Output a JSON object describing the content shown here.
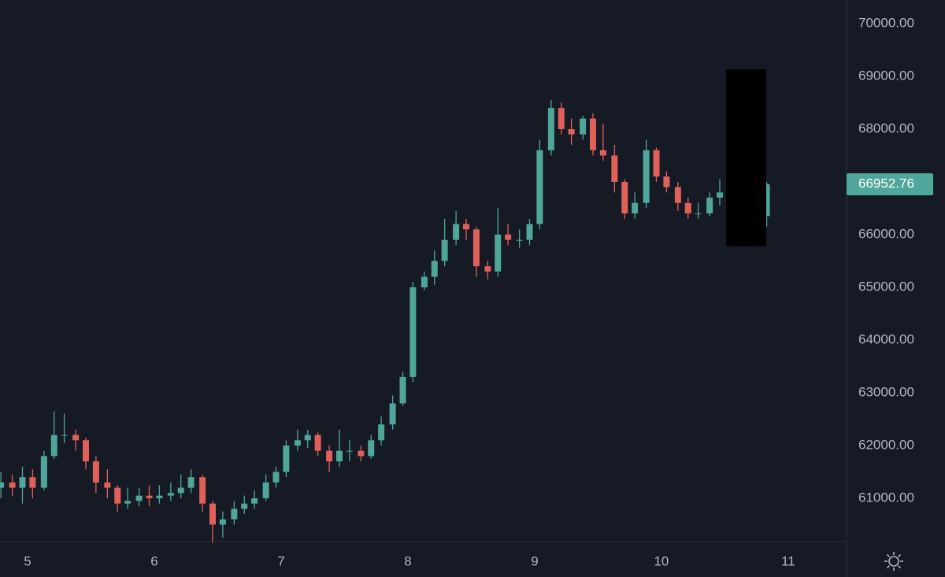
{
  "chart_data": {
    "type": "candlestick",
    "x": [
      4.79,
      4.88,
      4.96,
      5.04,
      5.13,
      5.21,
      5.29,
      5.38,
      5.46,
      5.54,
      5.63,
      5.71,
      5.79,
      5.88,
      5.96,
      6.04,
      6.13,
      6.21,
      6.29,
      6.38,
      6.46,
      6.54,
      6.63,
      6.71,
      6.79,
      6.88,
      6.96,
      7.04,
      7.13,
      7.21,
      7.29,
      7.38,
      7.46,
      7.54,
      7.63,
      7.71,
      7.79,
      7.88,
      7.96,
      8.04,
      8.13,
      8.21,
      8.29,
      8.38,
      8.46,
      8.54,
      8.63,
      8.71,
      8.79,
      8.88,
      8.96,
      9.04,
      9.13,
      9.21,
      9.29,
      9.38,
      9.46,
      9.54,
      9.63,
      9.71,
      9.79,
      9.88,
      9.96,
      10.04,
      10.13,
      10.21,
      10.29,
      10.38,
      10.46,
      10.83
    ],
    "open": [
      61200,
      61300,
      61200,
      61400,
      61200,
      61800,
      62200,
      62200,
      62100,
      61700,
      61300,
      61200,
      60900,
      60950,
      61050,
      61000,
      61050,
      61100,
      61200,
      61400,
      60900,
      60500,
      60600,
      60800,
      60900,
      61000,
      61300,
      61500,
      62000,
      62100,
      62200,
      61900,
      61700,
      61900,
      61900,
      61800,
      62100,
      62400,
      62800,
      63300,
      65000,
      65200,
      65500,
      65900,
      66200,
      66100,
      65400,
      65300,
      66000,
      65900,
      65900,
      66200,
      67600,
      68400,
      68000,
      67900,
      68200,
      67600,
      67500,
      67000,
      66400,
      66600,
      67600,
      67100,
      66900,
      66600,
      66400,
      66400,
      66700,
      66350
    ],
    "high": [
      61500,
      61450,
      61600,
      61550,
      61900,
      62650,
      62600,
      62300,
      62150,
      61800,
      61550,
      61250,
      61200,
      61200,
      61250,
      61250,
      61300,
      61450,
      61550,
      61450,
      60950,
      60750,
      60950,
      61050,
      61150,
      61450,
      61600,
      62100,
      62300,
      62300,
      62250,
      62000,
      62300,
      62100,
      62000,
      62200,
      62550,
      62950,
      63400,
      65100,
      65300,
      65700,
      66300,
      66450,
      66300,
      66150,
      65500,
      66500,
      66200,
      66100,
      66300,
      67800,
      68550,
      68500,
      68200,
      68250,
      68300,
      68100,
      67700,
      67050,
      66800,
      67800,
      67650,
      67200,
      67000,
      66700,
      66600,
      66800,
      67050,
      67000
    ],
    "low": [
      61000,
      61050,
      60900,
      61000,
      61150,
      61750,
      62050,
      61900,
      61550,
      61100,
      61000,
      60750,
      60800,
      60850,
      60850,
      60900,
      60950,
      61000,
      61100,
      60750,
      60150,
      60250,
      60500,
      60700,
      60800,
      60950,
      61200,
      61400,
      61900,
      61950,
      61800,
      61500,
      61600,
      61700,
      61700,
      61750,
      62000,
      62300,
      62750,
      63200,
      64950,
      65050,
      65400,
      65800,
      65900,
      65200,
      65150,
      65200,
      65800,
      65750,
      65800,
      66100,
      67500,
      67900,
      67700,
      67800,
      67500,
      67400,
      66800,
      66300,
      66300,
      66500,
      67000,
      66800,
      66450,
      66300,
      66300,
      66350,
      66550,
      66150
    ],
    "close": [
      61300,
      61200,
      61400,
      61200,
      61800,
      62200,
      62200,
      62100,
      61700,
      61300,
      61200,
      60900,
      60950,
      61050,
      61000,
      61050,
      61100,
      61200,
      61400,
      60900,
      60500,
      60600,
      60800,
      60900,
      61000,
      61300,
      61500,
      62000,
      62100,
      62200,
      61900,
      61700,
      61900,
      61900,
      61800,
      62100,
      62400,
      62800,
      63300,
      65000,
      65200,
      65500,
      65900,
      66200,
      66100,
      65400,
      65300,
      66000,
      65900,
      65900,
      66200,
      67600,
      68400,
      68000,
      67900,
      68200,
      67600,
      67500,
      67000,
      66400,
      66600,
      67600,
      67100,
      66900,
      66600,
      66400,
      66400,
      66700,
      66800,
      66952.76
    ],
    "up_color": "#4fa69a",
    "down_color": "#e0605a",
    "last_price": 66952.76,
    "xlim": [
      4.783,
      11.46
    ],
    "xticks": [
      5,
      6,
      7,
      8,
      9,
      10,
      11
    ],
    "ylim": [
      60179,
      70448
    ],
    "yticks": [
      {
        "value": 61000,
        "label": "61000.00"
      },
      {
        "value": 62000,
        "label": "62000.00"
      },
      {
        "value": 63000,
        "label": "63000.00"
      },
      {
        "value": 64000,
        "label": "64000.00"
      },
      {
        "value": 65000,
        "label": "65000.00"
      },
      {
        "value": 66000,
        "label": "66000.00"
      },
      {
        "value": 67000,
        "label": "67000.00"
      },
      {
        "value": 68000,
        "label": "68000.00"
      },
      {
        "value": 69000,
        "label": "69000.00"
      },
      {
        "value": 70000,
        "label": "70000.00"
      }
    ],
    "grid": true
  }
}
